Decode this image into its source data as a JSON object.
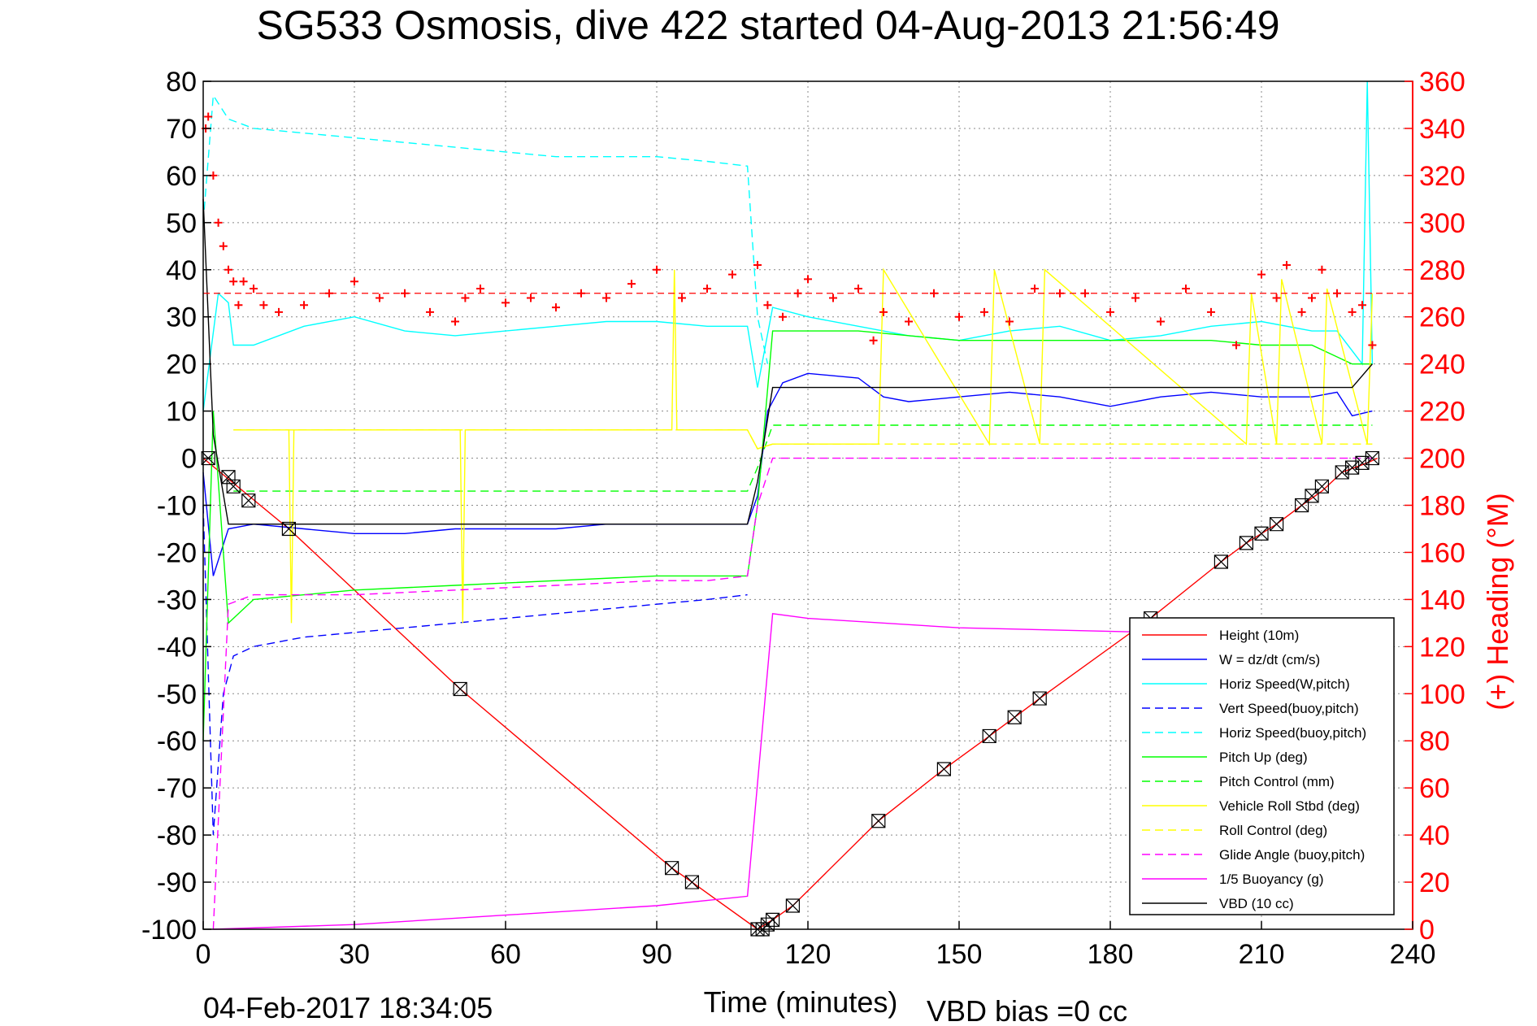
{
  "chart_data": {
    "type": "line",
    "title": "SG533 Osmosis, dive 422 started 04-Aug-2013 21:56:49",
    "xlabel": "Time (minutes)",
    "ylabel": "",
    "ylabel_right": "(+) Heading (°M)",
    "xlim": [
      0,
      240
    ],
    "ylim": [
      -100,
      80
    ],
    "ylim_right": [
      0,
      360
    ],
    "xticks": [
      "0",
      "30",
      "60",
      "90",
      "120",
      "150",
      "180",
      "210",
      "240"
    ],
    "yticks": [
      "80",
      "70",
      "60",
      "50",
      "40",
      "30",
      "20",
      "10",
      "0",
      "-10",
      "-20",
      "-30",
      "-40",
      "-50",
      "-60",
      "-70",
      "-80",
      "-90",
      "-100"
    ],
    "yticks_right": [
      "360",
      "340",
      "320",
      "300",
      "280",
      "260",
      "240",
      "220",
      "200",
      "180",
      "160",
      "140",
      "120",
      "100",
      "80",
      "60",
      "40",
      "20",
      "0"
    ],
    "grid": true,
    "legend_position": "bottom-right",
    "footer_left": "04-Feb-2017 18:34:05",
    "footer_right": "VBD bias =0 cc",
    "colors": {
      "red": "#ff0000",
      "blue": "#0000ff",
      "cyan": "#00ffff",
      "green": "#00ff00",
      "yellow": "#ffff00",
      "magenta": "#ff00ff",
      "black": "#000000"
    },
    "series": [
      {
        "name": "Height (10m)",
        "color": "#ff0000",
        "dash": false,
        "x": [
          0,
          17,
          51,
          93,
          97,
          110,
          113,
          117,
          134,
          147,
          156,
          161,
          166,
          188,
          202,
          207,
          213,
          218,
          222,
          226,
          231,
          233
        ],
        "y": [
          0,
          -15,
          -49,
          -87,
          -90,
          -100,
          -98,
          -95,
          -77,
          -66,
          -59,
          -55,
          -51,
          -34,
          -22,
          -18,
          -14,
          -10,
          -7,
          -3,
          -1,
          0
        ]
      },
      {
        "name": "W = dz/dt (cm/s)",
        "color": "#0000ff",
        "dash": false,
        "x": [
          0,
          2,
          5,
          10,
          20,
          30,
          40,
          50,
          60,
          70,
          80,
          90,
          100,
          108,
          110,
          112,
          115,
          120,
          130,
          135,
          140,
          150,
          160,
          170,
          180,
          190,
          200,
          210,
          220,
          225,
          228,
          232
        ],
        "y": [
          -3,
          -25,
          -15,
          -14,
          -15,
          -16,
          -16,
          -15,
          -15,
          -15,
          -14,
          -14,
          -14,
          -14,
          -8,
          10,
          16,
          18,
          17,
          13,
          12,
          13,
          14,
          13,
          11,
          13,
          14,
          13,
          13,
          14,
          9,
          10
        ]
      },
      {
        "name": "Horiz Speed(W,pitch)",
        "color": "#00ffff",
        "dash": false,
        "x": [
          0,
          3,
          5,
          6,
          10,
          20,
          30,
          40,
          50,
          60,
          70,
          80,
          90,
          100,
          108,
          110,
          113,
          120,
          130,
          140,
          150,
          160,
          170,
          180,
          190,
          200,
          210,
          220,
          225,
          230,
          231,
          232
        ],
        "y": [
          10,
          35,
          33,
          24,
          24,
          28,
          30,
          27,
          26,
          27,
          28,
          29,
          29,
          28,
          28,
          15,
          32,
          30,
          28,
          26,
          25,
          27,
          28,
          25,
          26,
          28,
          29,
          27,
          27,
          20,
          80,
          20
        ]
      },
      {
        "name": "Vert Speed(buoy,pitch)",
        "color": "#0000ff",
        "dash": true,
        "x": [
          0,
          2,
          4,
          6,
          10,
          20,
          30,
          40,
          50,
          60,
          70,
          80,
          90,
          100,
          108
        ],
        "y": [
          -10,
          -80,
          -50,
          -42,
          -40,
          -38,
          -37,
          -36,
          -35,
          -34,
          -33,
          -32,
          -31,
          -30,
          -29
        ]
      },
      {
        "name": "Horiz Speed(buoy,pitch)",
        "color": "#00ffff",
        "dash": true,
        "x": [
          0,
          2,
          5,
          10,
          20,
          30,
          40,
          50,
          60,
          70,
          80,
          90,
          100,
          108,
          110,
          112
        ],
        "y": [
          50,
          77,
          72,
          70,
          69,
          68,
          67,
          66,
          65,
          64,
          64,
          64,
          63,
          62,
          30,
          20
        ]
      },
      {
        "name": "Pitch Up (deg)",
        "color": "#00ff00",
        "dash": false,
        "x": [
          0,
          2,
          5,
          10,
          20,
          30,
          50,
          70,
          90,
          100,
          108,
          110,
          113,
          120,
          130,
          150,
          170,
          190,
          200,
          210,
          220,
          228,
          232
        ],
        "y": [
          -60,
          10,
          -35,
          -30,
          -29,
          -28,
          -27,
          -26,
          -25,
          -25,
          -25,
          -10,
          27,
          27,
          27,
          25,
          25,
          25,
          25,
          24,
          24,
          20,
          20
        ]
      },
      {
        "name": "Pitch Control (mm)",
        "color": "#00ff00",
        "dash": true,
        "x": [
          6,
          108,
          110,
          113,
          232
        ],
        "y": [
          -7,
          -7,
          -2,
          7,
          7
        ]
      },
      {
        "name": "Vehicle Roll Stbd (deg)",
        "color": "#ffff00",
        "dash": false,
        "x": [
          6,
          17,
          17.5,
          18,
          51,
          51.5,
          52,
          93,
          93.5,
          94,
          108,
          110,
          113,
          134,
          135,
          156,
          157,
          166,
          167,
          207,
          208,
          213,
          214,
          222,
          223,
          231,
          232
        ],
        "y": [
          6,
          6,
          -35,
          6,
          6,
          -35,
          6,
          6,
          40,
          6,
          6,
          2,
          3,
          3,
          40,
          3,
          40,
          3,
          40,
          3,
          35,
          3,
          38,
          3,
          36,
          3,
          35
        ]
      },
      {
        "name": "Roll Control (deg)",
        "color": "#ffff00",
        "dash": true,
        "x": [
          6,
          108,
          110,
          113,
          232
        ],
        "y": [
          6,
          6,
          2,
          3,
          3
        ]
      },
      {
        "name": "Glide Angle (buoy,pitch)",
        "color": "#ff00ff",
        "dash": true,
        "x": [
          2,
          5,
          10,
          20,
          30,
          50,
          70,
          90,
          100,
          108,
          110,
          113,
          232
        ],
        "y": [
          -100,
          -31,
          -29,
          -29,
          -29,
          -28,
          -27,
          -26,
          -26,
          -25,
          -10,
          0,
          0
        ]
      },
      {
        "name": "1/5 Buoyancy (g)",
        "color": "#ff00ff",
        "dash": false,
        "x": [
          2,
          30,
          60,
          90,
          108,
          113,
          120,
          150,
          190
        ],
        "y": [
          -100,
          -99,
          -97,
          -95,
          -93,
          -33,
          -34,
          -36,
          -37
        ]
      },
      {
        "name": "VBD (10 cc)",
        "color": "#000000",
        "dash": false,
        "x": [
          0,
          2,
          5,
          10,
          20,
          50,
          80,
          108,
          110,
          113,
          120,
          150,
          200,
          228,
          232
        ],
        "y": [
          55,
          5,
          -14,
          -14,
          -14,
          -14,
          -14,
          -14,
          -5,
          15,
          15,
          15,
          15,
          15,
          20
        ]
      }
    ],
    "heading": {
      "color": "#ff0000",
      "marker": "+",
      "axis": "right",
      "x": [
        0.5,
        1,
        2,
        3,
        4,
        5,
        6,
        7,
        8,
        10,
        12,
        15,
        20,
        25,
        30,
        35,
        40,
        45,
        50,
        52,
        55,
        60,
        65,
        70,
        75,
        80,
        85,
        90,
        95,
        100,
        105,
        110,
        112,
        115,
        118,
        120,
        125,
        130,
        133,
        135,
        140,
        145,
        150,
        155,
        160,
        165,
        170,
        175,
        180,
        185,
        190,
        195,
        200,
        205,
        210,
        213,
        215,
        218,
        220,
        222,
        225,
        228,
        230,
        232
      ],
      "y": [
        340,
        345,
        320,
        300,
        290,
        280,
        275,
        265,
        275,
        272,
        265,
        262,
        265,
        270,
        275,
        268,
        270,
        262,
        258,
        268,
        272,
        266,
        268,
        264,
        270,
        268,
        274,
        280,
        268,
        272,
        278,
        282,
        265,
        260,
        270,
        276,
        268,
        272,
        250,
        262,
        258,
        270,
        260,
        262,
        258,
        272,
        270,
        270,
        262,
        268,
        258,
        272,
        262,
        248,
        278,
        268,
        282,
        262,
        268,
        280,
        270,
        262,
        265,
        248
      ],
      "mean_heading": 270
    },
    "markers": {
      "color": "#000000",
      "symbol": "square-x",
      "x": [
        1,
        5,
        6,
        9,
        17,
        51,
        93,
        97,
        110,
        111,
        112,
        113,
        117,
        134,
        147,
        156,
        161,
        166,
        188,
        202,
        207,
        210,
        213,
        218,
        220,
        222,
        226,
        228,
        230,
        232
      ],
      "y": [
        0,
        -4,
        -6,
        -9,
        -15,
        -49,
        -87,
        -90,
        -100,
        -100,
        -99,
        -98,
        -95,
        -77,
        -66,
        -59,
        -55,
        -51,
        -34,
        -22,
        -18,
        -16,
        -14,
        -10,
        -8,
        -6,
        -3,
        -2,
        -1,
        0
      ]
    }
  }
}
